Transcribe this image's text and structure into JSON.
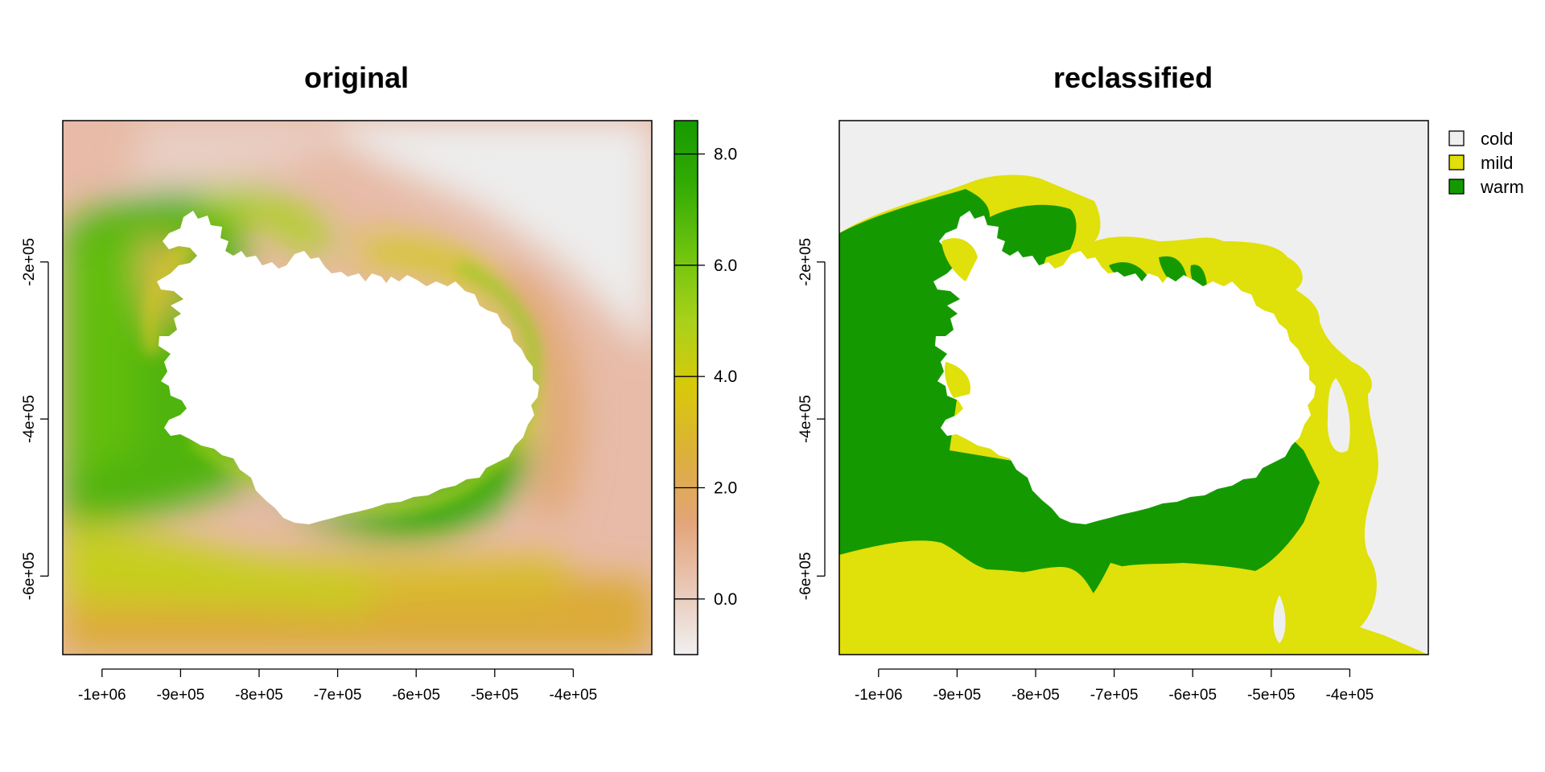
{
  "chart_data": [
    {
      "type": "heatmap",
      "title": "original",
      "xlabel": "",
      "ylabel": "",
      "x_ticks": [
        "-1e+06",
        "-9e+05",
        "-8e+05",
        "-7e+05",
        "-6e+05",
        "-5e+05",
        "-4e+05"
      ],
      "x_tick_values": [
        -1000000,
        -900000,
        -800000,
        -700000,
        -600000,
        -500000,
        -400000
      ],
      "y_ticks": [
        "-2e+05",
        "-4e+05",
        "-6e+05"
      ],
      "y_tick_values": [
        -200000,
        -400000,
        -600000
      ],
      "xlim": [
        -1050000,
        -300000
      ],
      "ylim": [
        -700000,
        -20000
      ],
      "grid": false,
      "colorbar": {
        "ticks": [
          "8.0",
          "6.0",
          "4.0",
          "2.0",
          "0.0"
        ],
        "tick_values": [
          8,
          6,
          4,
          2,
          0
        ],
        "range": [
          -1,
          8.6
        ],
        "palette": [
          "#f0f0f0",
          "#e9c7b6",
          "#e3a478",
          "#dcb03a",
          "#d8c90a",
          "#a9d11a",
          "#6fc40e",
          "#35ac05",
          "#149a00"
        ]
      }
    },
    {
      "type": "heatmap",
      "title": "reclassified",
      "xlabel": "",
      "ylabel": "",
      "x_ticks": [
        "-1e+06",
        "-9e+05",
        "-8e+05",
        "-7e+05",
        "-6e+05",
        "-5e+05",
        "-4e+05"
      ],
      "x_tick_values": [
        -1000000,
        -900000,
        -800000,
        -700000,
        -600000,
        -500000,
        -400000
      ],
      "y_ticks": [
        "-2e+05",
        "-4e+05",
        "-6e+05"
      ],
      "y_tick_values": [
        -200000,
        -400000,
        -600000
      ],
      "xlim": [
        -1050000,
        -300000
      ],
      "ylim": [
        -700000,
        -20000
      ],
      "grid": false,
      "legend": {
        "position": "right",
        "entries": [
          {
            "label": "cold",
            "color": "#efefef"
          },
          {
            "label": "mild",
            "color": "#e0e00a"
          },
          {
            "label": "warm",
            "color": "#149a00"
          }
        ]
      }
    }
  ]
}
